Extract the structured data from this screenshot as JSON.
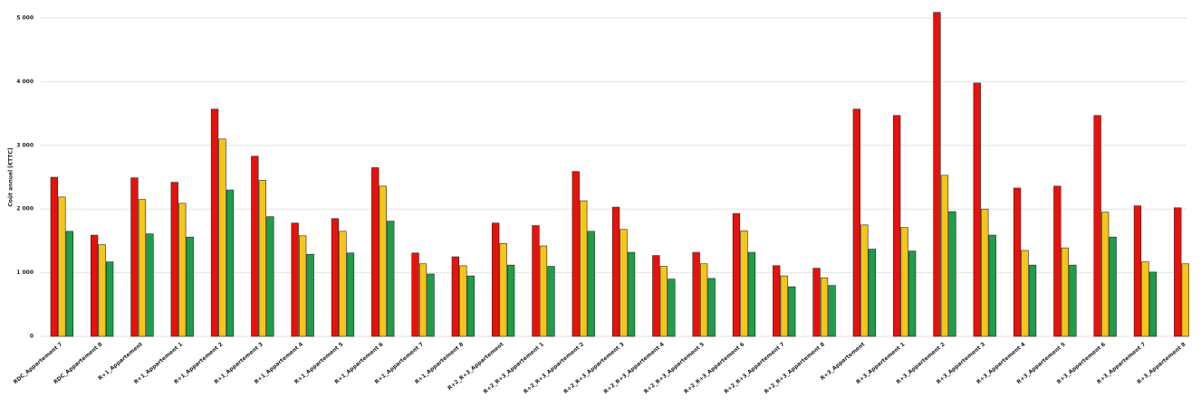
{
  "chart_data": {
    "type": "bar",
    "y_label": "Coût annuel [€TTC]",
    "categories": [
      "RDC_Appartement 7",
      "RDC_Appartement 8",
      "R+1_Appartement",
      "R+1_Appartement 1",
      "R+1_Appartement 2",
      "R+1_Appartement 3",
      "R+1_Appartement 4",
      "R+1_Appartement 5",
      "R+1_Appartement 6",
      "R+1_Appartement 7",
      "R+1_Appartement 8",
      "R+2_R+3_Appartement",
      "R+2_R+3_Appartement 1",
      "R+2_R+3_Appartement 2",
      "R+2_R+3_Appartement 3",
      "R+2_R+3_Appartement 4",
      "R+2_R+3_Appartement 5",
      "R+2_R+3_Appartement 6",
      "R+2_R+3_Appartement 7",
      "R+2_R+3_Appartement 8",
      "R+3_Appartement",
      "R+3_Appartement 1",
      "R+3_Appartement 2",
      "R+3_Appartement 3",
      "R+3_Appartement 4",
      "R+3_Appartement 5",
      "R+3_Appartement 6",
      "R+3_Appartement 7",
      "R+3_Appartement 8"
    ],
    "series": [
      {
        "color": "#e8120c",
        "values": [
          2500,
          1590,
          2490,
          2420,
          3570,
          2830,
          1780,
          1850,
          2650,
          1310,
          1250,
          1780,
          1740,
          2590,
          2030,
          1270,
          1320,
          1930,
          1110,
          1070,
          3570,
          3470,
          5090,
          3980,
          2330,
          2360,
          3470,
          2050,
          2020
        ]
      },
      {
        "color": "#f5c518",
        "values": [
          2190,
          1440,
          2150,
          2090,
          3100,
          2450,
          1580,
          1650,
          2360,
          1140,
          1110,
          1460,
          1420,
          2130,
          1680,
          1100,
          1140,
          1660,
          950,
          920,
          1750,
          1710,
          2530,
          2000,
          1350,
          1390,
          1950,
          1170,
          1140
        ]
      },
      {
        "color": "#1e9e4a",
        "values": [
          1650,
          1170,
          1610,
          1560,
          2300,
          1880,
          1290,
          1310,
          1810,
          980,
          950,
          1120,
          1100,
          1650,
          1320,
          900,
          910,
          1320,
          780,
          800,
          1370,
          1340,
          1960,
          1590,
          1120,
          1120,
          1560,
          1010,
          null
        ]
      }
    ],
    "ylim": [
      0,
      5000
    ],
    "yticks": [
      0,
      {
        "value": 1000,
        "label": "1 000"
      },
      {
        "value": 2000,
        "label": "2 000"
      },
      {
        "value": 3000,
        "label": "3 000"
      },
      {
        "value": 4000,
        "label": "4 000"
      },
      {
        "value": 5000,
        "label": "5 000"
      }
    ],
    "grid": true
  }
}
